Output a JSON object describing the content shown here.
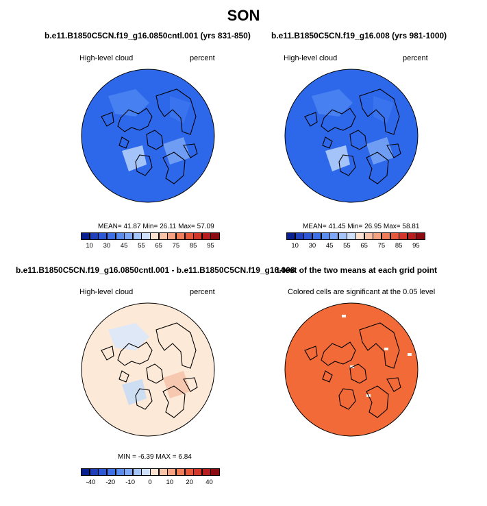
{
  "title": "SON",
  "panels": [
    {
      "id": "p1",
      "case_title": "b.e11.B1850C5CN.f19_g16.0850cntl.001 (yrs 831-850)",
      "left_label": "High-level cloud",
      "right_label": "percent",
      "stats": {
        "mean_label": "MEAN=",
        "mean": "41.87",
        "min_label": "Min=",
        "min": "26.11",
        "max_label": "Max=",
        "max": "57.09"
      },
      "base_color": "#2e68ea",
      "patch_colors": [
        "#4b86f2",
        "#7aa7f6",
        "#b8d4fb",
        "#3c76ee"
      ]
    },
    {
      "id": "p2",
      "case_title": "b.e11.B1850C5CN.f19_g16.008 (yrs 981-1000)",
      "left_label": "High-level cloud",
      "right_label": "percent",
      "stats": {
        "mean_label": "MEAN=",
        "mean": "41.45",
        "min_label": "Min=",
        "min": "26.95",
        "max_label": "Max=",
        "max": "58.81"
      },
      "base_color": "#2e68ea",
      "patch_colors": [
        "#4b86f2",
        "#7aa7f6",
        "#b8d4fb",
        "#3c76ee"
      ]
    },
    {
      "id": "p3",
      "case_title": "b.e11.B1850C5CN.f19_g16.0850cntl.001 - b.e11.B1850C5CN.f19_g16.008",
      "left_label": "High-level cloud",
      "right_label": "percent",
      "stats": {
        "min_label": "MIN =",
        "min": "-6.39",
        "max_label": "MAX =",
        "max": "6.84"
      },
      "base_color": "#fde9d8",
      "patch_colors": [
        "#d8e8fb",
        "#f4c2a8",
        "#c4dbf7"
      ]
    },
    {
      "id": "p4",
      "case_title": "t-test of the two means at each grid point",
      "center_label": "Colored cells are significant at the 0.05 level",
      "base_color": "#f26a38",
      "patch_colors": [
        "#ffffff"
      ]
    }
  ],
  "chart_data": [
    {
      "type": "heatmap",
      "title": "b.e11.B1850C5CN.f19_g16.0850cntl.001 (yrs 831-850)",
      "variable": "High-level cloud",
      "units": "percent",
      "season": "SON",
      "mean": 41.87,
      "min": 26.11,
      "max": 57.09,
      "colorbar_levels": [
        5,
        10,
        20,
        30,
        40,
        45,
        50,
        55,
        60,
        65,
        70,
        75,
        80,
        85,
        90,
        95
      ],
      "colorbar_tick_labels": [
        "10",
        "30",
        "45",
        "55",
        "65",
        "75",
        "85",
        "95"
      ],
      "colorbar_colors": [
        "#08208f",
        "#1f3fbb",
        "#2e57d6",
        "#3e6fe6",
        "#5a8cf0",
        "#7ea8f5",
        "#a5c4f8",
        "#cfe0fb",
        "#fde3cf",
        "#f9c3a8",
        "#f5a282",
        "#ef7d5a",
        "#e5583b",
        "#d4372a",
        "#b71d1e",
        "#8a0b12"
      ]
    },
    {
      "type": "heatmap",
      "title": "b.e11.B1850C5CN.f19_g16.008 (yrs 981-1000)",
      "variable": "High-level cloud",
      "units": "percent",
      "season": "SON",
      "mean": 41.45,
      "min": 26.95,
      "max": 58.81,
      "colorbar_levels": [
        5,
        10,
        20,
        30,
        40,
        45,
        50,
        55,
        60,
        65,
        70,
        75,
        80,
        85,
        90,
        95
      ],
      "colorbar_tick_labels": [
        "10",
        "30",
        "45",
        "55",
        "65",
        "75",
        "85",
        "95"
      ],
      "colorbar_colors": [
        "#08208f",
        "#1f3fbb",
        "#2e57d6",
        "#3e6fe6",
        "#5a8cf0",
        "#7ea8f5",
        "#a5c4f8",
        "#cfe0fb",
        "#fde3cf",
        "#f9c3a8",
        "#f5a282",
        "#ef7d5a",
        "#e5583b",
        "#d4372a",
        "#b71d1e",
        "#8a0b12"
      ]
    },
    {
      "type": "heatmap",
      "title": "b.e11.B1850C5CN.f19_g16.0850cntl.001 - b.e11.B1850C5CN.f19_g16.008",
      "variable": "High-level cloud",
      "units": "percent",
      "min": -6.39,
      "max": 6.84,
      "colorbar_levels": [
        -50,
        -40,
        -30,
        -20,
        -15,
        -10,
        -5,
        0,
        5,
        10,
        15,
        20,
        30,
        40,
        50
      ],
      "colorbar_tick_labels": [
        "-40",
        "-20",
        "-10",
        "0",
        "10",
        "20",
        "40"
      ],
      "colorbar_colors": [
        "#08208f",
        "#1f3fbb",
        "#2e57d6",
        "#3e6fe6",
        "#5a8cf0",
        "#7ea8f5",
        "#a5c4f8",
        "#cfe0fb",
        "#fde3cf",
        "#f9c3a8",
        "#f5a282",
        "#ef7d5a",
        "#e5583b",
        "#d4372a",
        "#b71d1e",
        "#8a0b12"
      ]
    },
    {
      "type": "heatmap",
      "title": "t-test of the two means at each grid point",
      "note": "Colored cells are significant at the 0.05 level",
      "significance_level": 0.05
    }
  ]
}
